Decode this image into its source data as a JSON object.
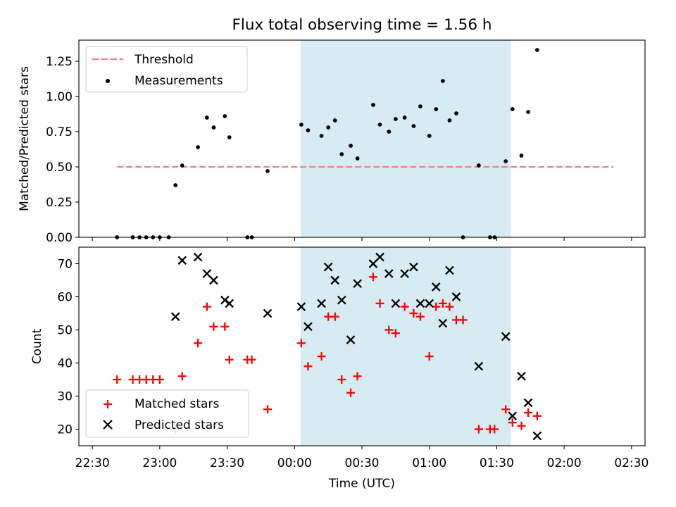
{
  "chart_data": [
    {
      "type": "scatter",
      "title": "Flux total observing time = 1.56 h",
      "xlabel": "",
      "ylabel": "Matched/Predicted stars",
      "ylim": [
        0,
        1.4
      ],
      "yticks": [
        "0.00",
        "0.25",
        "0.50",
        "0.75",
        "1.00",
        "1.25"
      ],
      "legend_position": "top-left",
      "shaded_x_range": [
        "00:03",
        "01:36"
      ],
      "threshold": {
        "name": "Threshold",
        "value": 0.5,
        "x_range": [
          "22:41",
          "02:22"
        ],
        "color": "#f08080"
      },
      "series": [
        {
          "name": "Measurements",
          "color": "#000000",
          "marker": "dot",
          "points": [
            [
              "22:41",
              0
            ],
            [
              "22:48",
              0
            ],
            [
              "22:51",
              0
            ],
            [
              "22:54",
              0
            ],
            [
              "22:57",
              0
            ],
            [
              "23:00",
              0
            ],
            [
              "23:04",
              0
            ],
            [
              "23:07",
              0.37
            ],
            [
              "23:10",
              0.51
            ],
            [
              "23:17",
              0.64
            ],
            [
              "23:21",
              0.85
            ],
            [
              "23:24",
              0.78
            ],
            [
              "23:29",
              0.86
            ],
            [
              "23:31",
              0.71
            ],
            [
              "23:39",
              0
            ],
            [
              "23:41",
              0
            ],
            [
              "23:48",
              0.47
            ],
            [
              "00:03",
              0.8
            ],
            [
              "00:06",
              0.76
            ],
            [
              "00:12",
              0.72
            ],
            [
              "00:15",
              0.78
            ],
            [
              "00:18",
              0.83
            ],
            [
              "00:21",
              0.59
            ],
            [
              "00:25",
              0.65
            ],
            [
              "00:28",
              0.56
            ],
            [
              "00:35",
              0.94
            ],
            [
              "00:38",
              0.8
            ],
            [
              "00:42",
              0.75
            ],
            [
              "00:45",
              0.84
            ],
            [
              "00:49",
              0.85
            ],
            [
              "00:53",
              0.79
            ],
            [
              "00:56",
              0.93
            ],
            [
              "01:00",
              0.72
            ],
            [
              "01:03",
              0.91
            ],
            [
              "01:06",
              1.11
            ],
            [
              "01:09",
              0.83
            ],
            [
              "01:12",
              0.88
            ],
            [
              "01:15",
              0
            ],
            [
              "01:22",
              0.51
            ],
            [
              "01:27",
              0
            ],
            [
              "01:29",
              0
            ],
            [
              "01:34",
              0.54
            ],
            [
              "01:37",
              0.91
            ],
            [
              "01:41",
              0.58
            ],
            [
              "01:44",
              0.89
            ],
            [
              "01:48",
              1.33
            ]
          ]
        }
      ]
    },
    {
      "type": "scatter",
      "title": "",
      "xlabel": "Time (UTC)",
      "ylabel": "Count",
      "ylim": [
        15,
        75
      ],
      "yticks": [
        "20",
        "30",
        "40",
        "50",
        "60",
        "70"
      ],
      "xticks": [
        "22:30",
        "23:00",
        "23:30",
        "00:00",
        "00:30",
        "01:00",
        "01:30",
        "02:00",
        "02:30"
      ],
      "legend_position": "bottom-left",
      "shaded_x_range": [
        "00:03",
        "01:36"
      ],
      "series": [
        {
          "name": "Matched stars",
          "color": "#ff0000",
          "marker": "plus",
          "points": [
            [
              "22:41",
              35
            ],
            [
              "22:48",
              35
            ],
            [
              "22:51",
              35
            ],
            [
              "22:54",
              35
            ],
            [
              "22:57",
              35
            ],
            [
              "23:00",
              35
            ],
            [
              "23:07",
              20
            ],
            [
              "23:10",
              36
            ],
            [
              "23:17",
              46
            ],
            [
              "23:21",
              57
            ],
            [
              "23:24",
              51
            ],
            [
              "23:29",
              51
            ],
            [
              "23:31",
              41
            ],
            [
              "23:39",
              41
            ],
            [
              "23:41",
              41
            ],
            [
              "23:48",
              26
            ],
            [
              "00:03",
              46
            ],
            [
              "00:06",
              39
            ],
            [
              "00:12",
              42
            ],
            [
              "00:15",
              54
            ],
            [
              "00:18",
              54
            ],
            [
              "00:21",
              35
            ],
            [
              "00:25",
              31
            ],
            [
              "00:28",
              36
            ],
            [
              "00:35",
              66
            ],
            [
              "00:38",
              58
            ],
            [
              "00:42",
              50
            ],
            [
              "00:45",
              49
            ],
            [
              "00:49",
              57
            ],
            [
              "00:53",
              55
            ],
            [
              "00:56",
              54
            ],
            [
              "01:00",
              42
            ],
            [
              "01:03",
              57
            ],
            [
              "01:06",
              58
            ],
            [
              "01:09",
              57
            ],
            [
              "01:12",
              53
            ],
            [
              "01:15",
              53
            ],
            [
              "01:22",
              20
            ],
            [
              "01:27",
              20
            ],
            [
              "01:29",
              20
            ],
            [
              "01:34",
              26
            ],
            [
              "01:37",
              22
            ],
            [
              "01:41",
              21
            ],
            [
              "01:44",
              25
            ],
            [
              "01:48",
              24
            ]
          ]
        },
        {
          "name": "Predicted stars",
          "color": "#000000",
          "marker": "x",
          "points": [
            [
              "23:07",
              54
            ],
            [
              "23:10",
              71
            ],
            [
              "23:17",
              72
            ],
            [
              "23:21",
              67
            ],
            [
              "23:24",
              65
            ],
            [
              "23:29",
              59
            ],
            [
              "23:31",
              58
            ],
            [
              "23:48",
              55
            ],
            [
              "00:03",
              57
            ],
            [
              "00:06",
              51
            ],
            [
              "00:12",
              58
            ],
            [
              "00:15",
              69
            ],
            [
              "00:18",
              65
            ],
            [
              "00:21",
              59
            ],
            [
              "00:25",
              47
            ],
            [
              "00:28",
              64
            ],
            [
              "00:35",
              70
            ],
            [
              "00:38",
              72
            ],
            [
              "00:42",
              67
            ],
            [
              "00:45",
              58
            ],
            [
              "00:49",
              67
            ],
            [
              "00:53",
              69
            ],
            [
              "00:56",
              58
            ],
            [
              "01:00",
              58
            ],
            [
              "01:03",
              63
            ],
            [
              "01:06",
              52
            ],
            [
              "01:09",
              68
            ],
            [
              "01:12",
              60
            ],
            [
              "01:22",
              39
            ],
            [
              "01:34",
              48
            ],
            [
              "01:37",
              24
            ],
            [
              "01:41",
              36
            ],
            [
              "01:44",
              28
            ],
            [
              "01:48",
              18
            ]
          ]
        }
      ]
    }
  ]
}
